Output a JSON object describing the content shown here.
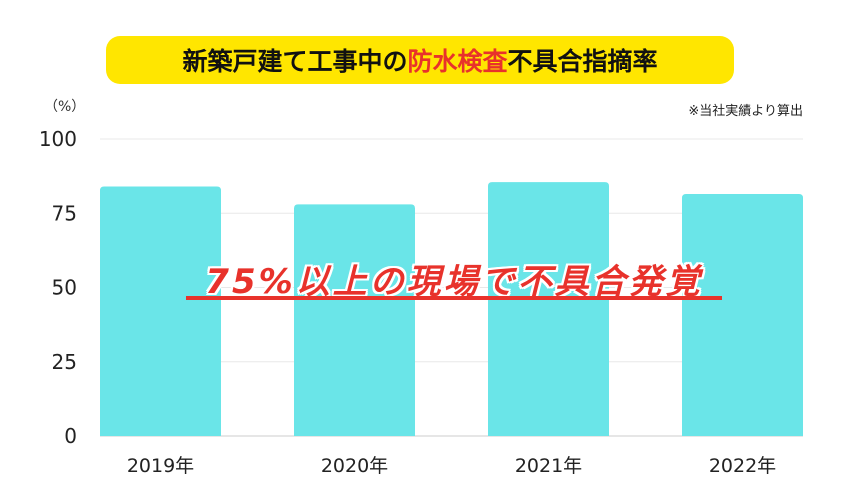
{
  "title": {
    "part1": "新築戸建て工事中の",
    "part2": "防水検査",
    "part3": "不具合指摘率"
  },
  "unit_label": "（%）",
  "source_note": "※当社実績より算出",
  "overlay_text": "75%以上の現場で不具合発覚",
  "colors": {
    "bar": "#6ae5e8",
    "title_bg": "#ffe600",
    "accent": "#e8322b",
    "grid": "#e8e8e8"
  },
  "chart_data": {
    "type": "bar",
    "title": "新築戸建て工事中の防水検査不具合指摘率",
    "categories": [
      "2019年",
      "2020年",
      "2021年",
      "2022年"
    ],
    "values": [
      84,
      78,
      85.5,
      81.5
    ],
    "ylabel": "（%）",
    "ylim": [
      0,
      100
    ],
    "yticks": [
      0,
      25,
      50,
      75,
      100
    ],
    "grid": true
  }
}
